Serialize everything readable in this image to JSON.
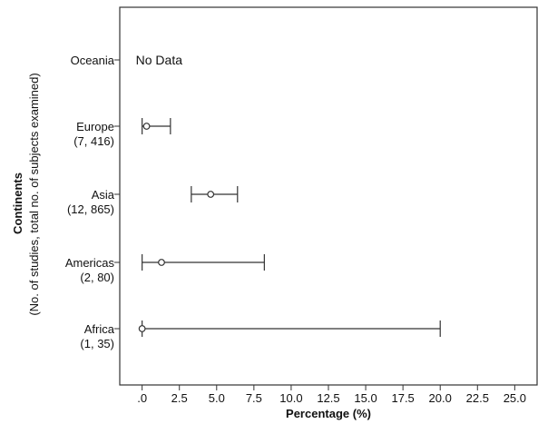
{
  "chart_data": {
    "type": "scatter",
    "orientation": "horizontal",
    "xlabel": "Percentage (%)",
    "ylabel": "Continents",
    "ylabel_sub": "(No. of studies, total no. of subjects examined)",
    "xlim": [
      -1.5,
      26.5
    ],
    "x_ticks": [
      0,
      2.5,
      5,
      7.5,
      10,
      12.5,
      15,
      17.5,
      20,
      22.5,
      25
    ],
    "x_tick_labels": [
      ".0",
      "2.5",
      "5.0",
      "7.5",
      "10.0",
      "12.5",
      "15.0",
      "17.5",
      "20.0",
      "22.5",
      "25.0"
    ],
    "categories": [
      {
        "label": "Oceania",
        "sub": "",
        "estimate": null,
        "lower": null,
        "upper": null,
        "annotation": "No Data"
      },
      {
        "label": "Europe",
        "sub": "(7, 416)",
        "estimate": 0.3,
        "lower": 0.0,
        "upper": 1.9,
        "annotation": ""
      },
      {
        "label": "Asia",
        "sub": "(12, 865)",
        "estimate": 4.6,
        "lower": 3.3,
        "upper": 6.4,
        "annotation": ""
      },
      {
        "label": "Americas",
        "sub": "(2, 80)",
        "estimate": 1.3,
        "lower": 0.0,
        "upper": 8.2,
        "annotation": ""
      },
      {
        "label": "Africa",
        "sub": "(1, 35)",
        "estimate": 0.0,
        "lower": 0.0,
        "upper": 20.0,
        "annotation": ""
      }
    ],
    "grid": false,
    "colors": {
      "axis": "#333333",
      "marker": "#333333",
      "text": "#111111"
    }
  }
}
